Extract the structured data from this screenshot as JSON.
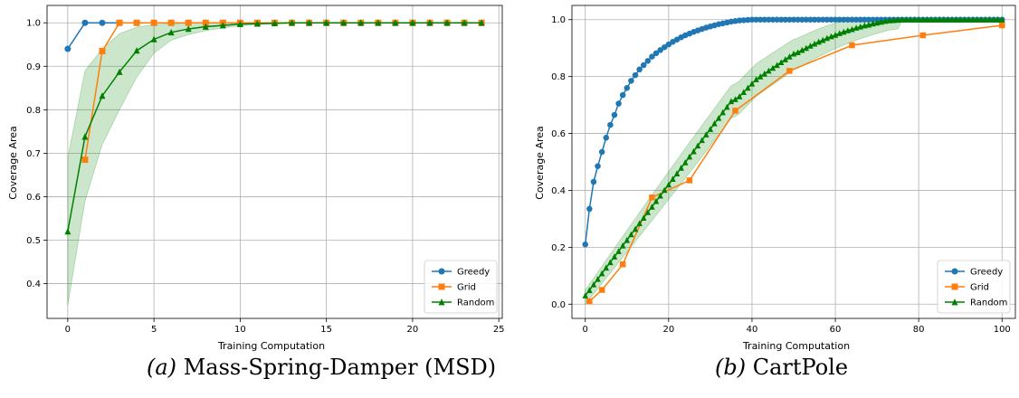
{
  "captions": [
    {
      "tag": "(a)",
      "text": "Mass-Spring-Damper (MSD)"
    },
    {
      "tag": "(b)",
      "text": "CartPole"
    }
  ],
  "series_colors": {
    "Greedy": "#1f77b4",
    "Grid": "#ff7f0e",
    "Random": "#008000"
  },
  "chart_data": [
    {
      "type": "line",
      "xlabel": "Training Computation",
      "ylabel": "Coverage Area",
      "xlim": [
        -1.2,
        25.2
      ],
      "ylim": [
        0.32,
        1.04
      ],
      "xticks": [
        0,
        5,
        10,
        15,
        20,
        25
      ],
      "yticks": [
        0.4,
        0.5,
        0.6,
        0.7,
        0.8,
        0.9,
        1.0
      ],
      "grid": true,
      "legend": "lower-right",
      "series": [
        {
          "name": "Greedy",
          "marker": "circle",
          "x": [
            0,
            1,
            2,
            3,
            4,
            5,
            6,
            7,
            8,
            9,
            10,
            11,
            12,
            13,
            14,
            15,
            16,
            17,
            18,
            19,
            20,
            21,
            22,
            23,
            24
          ],
          "y": [
            0.94,
            1.0,
            1.0,
            1.0,
            1.0,
            1.0,
            1.0,
            1.0,
            1.0,
            1.0,
            1.0,
            1.0,
            1.0,
            1.0,
            1.0,
            1.0,
            1.0,
            1.0,
            1.0,
            1.0,
            1.0,
            1.0,
            1.0,
            1.0,
            1.0
          ]
        },
        {
          "name": "Grid",
          "marker": "square",
          "x": [
            1,
            2,
            3,
            4,
            5,
            6,
            7,
            8,
            9,
            10,
            11,
            12,
            13,
            14,
            15,
            16,
            17,
            18,
            19,
            20,
            21,
            22,
            23,
            24
          ],
          "y": [
            0.685,
            0.935,
            1.0,
            1.0,
            1.0,
            1.0,
            1.0,
            1.0,
            1.0,
            1.0,
            1.0,
            1.0,
            1.0,
            1.0,
            1.0,
            1.0,
            1.0,
            1.0,
            1.0,
            1.0,
            1.0,
            1.0,
            1.0,
            1.0
          ]
        },
        {
          "name": "Random",
          "marker": "triangle",
          "x": [
            0,
            1,
            2,
            3,
            4,
            5,
            6,
            7,
            8,
            9,
            10,
            11,
            12,
            13,
            14,
            15,
            16,
            17,
            18,
            19,
            20,
            21,
            22,
            23,
            24
          ],
          "y": [
            0.52,
            0.738,
            0.832,
            0.887,
            0.936,
            0.962,
            0.978,
            0.986,
            0.991,
            0.994,
            0.997,
            0.998,
            0.999,
            1.0,
            1.0,
            1.0,
            1.0,
            1.0,
            1.0,
            1.0,
            1.0,
            1.0,
            1.0,
            1.0,
            1.0
          ],
          "band_lower": [
            0.35,
            0.59,
            0.72,
            0.8,
            0.875,
            0.93,
            0.96,
            0.973,
            0.982,
            0.988,
            0.993,
            0.996,
            0.998,
            0.999,
            1.0,
            1.0,
            1.0,
            1.0,
            1.0,
            1.0,
            1.0,
            1.0,
            1.0,
            1.0,
            1.0
          ],
          "band_upper": [
            0.69,
            0.89,
            0.94,
            0.975,
            0.99,
            0.996,
            0.998,
            0.999,
            1.0,
            1.0,
            1.0,
            1.0,
            1.0,
            1.0,
            1.0,
            1.0,
            1.0,
            1.0,
            1.0,
            1.0,
            1.0,
            1.0,
            1.0,
            1.0,
            1.0
          ]
        }
      ]
    },
    {
      "type": "line",
      "xlabel": "Training Computation",
      "ylabel": "Coverage Area",
      "xlim": [
        -3.2,
        103.2
      ],
      "ylim": [
        -0.05,
        1.05
      ],
      "xticks": [
        0,
        20,
        40,
        60,
        80,
        100
      ],
      "yticks": [
        0.0,
        0.2,
        0.4,
        0.6,
        0.8,
        1.0
      ],
      "grid": true,
      "legend": "lower-right",
      "series": [
        {
          "name": "Greedy",
          "marker": "circle",
          "x": [
            0,
            1,
            2,
            3,
            4,
            5,
            6,
            7,
            8,
            9,
            10,
            11,
            12,
            13,
            14,
            15,
            16,
            17,
            18,
            19,
            20,
            21,
            22,
            23,
            24,
            25,
            26,
            27,
            28,
            29,
            30,
            31,
            32,
            33,
            34,
            35,
            36,
            37,
            38,
            39,
            40,
            41,
            42,
            43,
            44,
            45,
            46,
            47,
            48,
            49,
            50,
            51,
            52,
            53,
            54,
            55,
            56,
            57,
            58,
            59,
            60,
            61,
            62,
            63,
            64,
            65,
            66,
            67,
            68,
            69,
            70,
            71,
            72,
            73,
            74,
            75,
            76,
            77,
            78,
            79,
            80,
            81,
            82,
            83,
            84,
            85,
            86,
            87,
            88,
            89,
            90,
            91,
            92,
            93,
            94,
            95,
            96,
            97,
            98,
            99,
            100
          ],
          "y": [
            0.21,
            0.335,
            0.43,
            0.485,
            0.535,
            0.585,
            0.63,
            0.665,
            0.705,
            0.735,
            0.76,
            0.785,
            0.805,
            0.825,
            0.84,
            0.855,
            0.87,
            0.882,
            0.893,
            0.903,
            0.913,
            0.922,
            0.93,
            0.938,
            0.945,
            0.951,
            0.957,
            0.962,
            0.967,
            0.972,
            0.976,
            0.98,
            0.984,
            0.987,
            0.99,
            0.993,
            0.995,
            0.997,
            0.998,
            0.999,
            1.0,
            1.0,
            1.0,
            1.0,
            1.0,
            1.0,
            1.0,
            1.0,
            1.0,
            1.0,
            1.0,
            1.0,
            1.0,
            1.0,
            1.0,
            1.0,
            1.0,
            1.0,
            1.0,
            1.0,
            1.0,
            1.0,
            1.0,
            1.0,
            1.0,
            1.0,
            1.0,
            1.0,
            1.0,
            1.0,
            1.0,
            1.0,
            1.0,
            1.0,
            1.0,
            1.0,
            1.0,
            1.0,
            1.0,
            1.0,
            1.0,
            1.0,
            1.0,
            1.0,
            1.0,
            1.0,
            1.0,
            1.0,
            1.0,
            1.0,
            1.0,
            1.0,
            1.0,
            1.0,
            1.0,
            1.0,
            1.0,
            1.0,
            1.0,
            1.0,
            1.0
          ]
        },
        {
          "name": "Grid",
          "marker": "square",
          "x": [
            1,
            4,
            9,
            16,
            25,
            36,
            49,
            64,
            81,
            100
          ],
          "y": [
            0.01,
            0.05,
            0.14,
            0.375,
            0.435,
            0.68,
            0.82,
            0.91,
            0.945,
            0.98
          ]
        },
        {
          "name": "Random",
          "marker": "triangle",
          "x": [
            0,
            1,
            2,
            3,
            4,
            5,
            6,
            7,
            8,
            9,
            10,
            11,
            12,
            13,
            14,
            15,
            16,
            17,
            18,
            19,
            20,
            21,
            22,
            23,
            24,
            25,
            26,
            27,
            28,
            29,
            30,
            31,
            32,
            33,
            34,
            35,
            36,
            37,
            38,
            39,
            40,
            41,
            42,
            43,
            44,
            45,
            46,
            47,
            48,
            49,
            50,
            51,
            52,
            53,
            54,
            55,
            56,
            57,
            58,
            59,
            60,
            61,
            62,
            63,
            64,
            65,
            66,
            67,
            68,
            69,
            70,
            71,
            72,
            73,
            74,
            75,
            76,
            77,
            78,
            79,
            80,
            81,
            82,
            83,
            84,
            85,
            86,
            87,
            88,
            89,
            90,
            91,
            92,
            93,
            94,
            95,
            96,
            97,
            98,
            99,
            100
          ],
          "y": [
            0.03,
            0.049,
            0.069,
            0.088,
            0.108,
            0.128,
            0.147,
            0.167,
            0.186,
            0.206,
            0.225,
            0.245,
            0.264,
            0.284,
            0.303,
            0.323,
            0.342,
            0.362,
            0.381,
            0.401,
            0.42,
            0.44,
            0.459,
            0.479,
            0.498,
            0.518,
            0.537,
            0.557,
            0.576,
            0.596,
            0.615,
            0.635,
            0.654,
            0.674,
            0.693,
            0.713,
            0.72,
            0.73,
            0.745,
            0.76,
            0.775,
            0.79,
            0.8,
            0.81,
            0.82,
            0.83,
            0.84,
            0.85,
            0.86,
            0.87,
            0.88,
            0.885,
            0.893,
            0.9,
            0.908,
            0.915,
            0.922,
            0.928,
            0.935,
            0.941,
            0.946,
            0.952,
            0.957,
            0.962,
            0.966,
            0.971,
            0.975,
            0.979,
            0.982,
            0.986,
            0.989,
            0.992,
            0.995,
            0.997,
            0.998,
            0.999,
            1.0,
            1.0,
            1.0,
            1.0,
            1.0,
            1.0,
            1.0,
            1.0,
            1.0,
            1.0,
            1.0,
            1.0,
            1.0,
            1.0,
            1.0,
            1.0,
            1.0,
            1.0,
            1.0,
            1.0,
            1.0,
            1.0,
            1.0,
            1.0,
            1.0
          ],
          "band_halfwidth": [
            0.01,
            0.05,
            0.01
          ]
        }
      ]
    }
  ]
}
